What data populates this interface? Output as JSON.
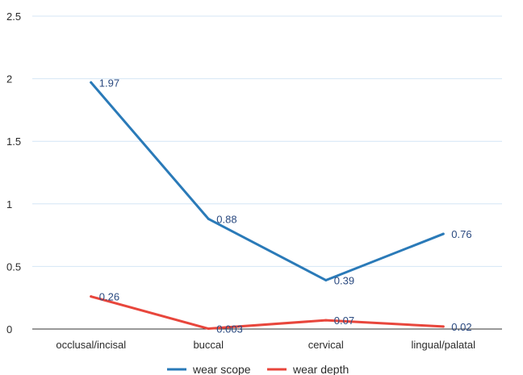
{
  "chart_data": {
    "type": "line",
    "categories": [
      "occlusal/incisal",
      "buccal",
      "cervical",
      "lingual/palatal"
    ],
    "series": [
      {
        "name": "wear scope",
        "values": [
          1.97,
          0.88,
          0.39,
          0.76
        ],
        "labels": [
          "1.97",
          "0.88",
          "0.39",
          "0.76"
        ],
        "color": "#2a7ab8"
      },
      {
        "name": "wear depth",
        "values": [
          0.26,
          0.003,
          0.07,
          0.02
        ],
        "labels": [
          "0.26",
          "0.003",
          "0.07",
          "0.02"
        ],
        "color": "#e8463c"
      }
    ],
    "ylim": [
      0,
      2.5
    ],
    "yticks": [
      "0",
      "0.5",
      "1",
      "1.5",
      "2",
      "2.5"
    ],
    "grid": true,
    "legend_position": "bottom"
  }
}
